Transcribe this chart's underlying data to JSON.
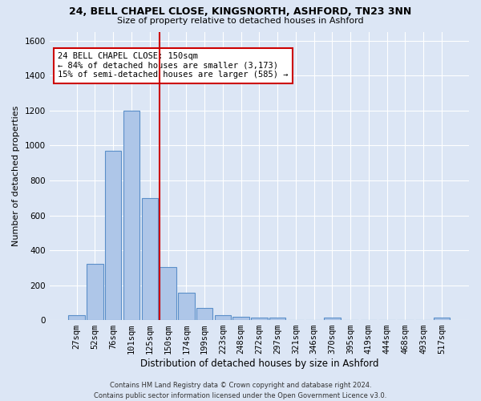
{
  "title1": "24, BELL CHAPEL CLOSE, KINGSNORTH, ASHFORD, TN23 3NN",
  "title2": "Size of property relative to detached houses in Ashford",
  "xlabel": "Distribution of detached houses by size in Ashford",
  "ylabel": "Number of detached properties",
  "footer1": "Contains HM Land Registry data © Crown copyright and database right 2024.",
  "footer2": "Contains public sector information licensed under the Open Government Licence v3.0.",
  "categories": [
    "27sqm",
    "52sqm",
    "76sqm",
    "101sqm",
    "125sqm",
    "150sqm",
    "174sqm",
    "199sqm",
    "223sqm",
    "248sqm",
    "272sqm",
    "297sqm",
    "321sqm",
    "346sqm",
    "370sqm",
    "395sqm",
    "419sqm",
    "444sqm",
    "468sqm",
    "493sqm",
    "517sqm"
  ],
  "values": [
    30,
    320,
    970,
    1200,
    700,
    305,
    155,
    70,
    30,
    20,
    15,
    15,
    0,
    0,
    13,
    0,
    0,
    0,
    0,
    0,
    13
  ],
  "bar_color": "#aec6e8",
  "bar_edge_color": "#5b8fc9",
  "highlight_index": 5,
  "highlight_color": "#cc0000",
  "ylim": [
    0,
    1650
  ],
  "annotation_line1": "24 BELL CHAPEL CLOSE: 150sqm",
  "annotation_line2": "← 84% of detached houses are smaller (3,173)",
  "annotation_line3": "15% of semi-detached houses are larger (585) →",
  "annotation_box_color": "#ffffff",
  "annotation_box_edge_color": "#cc0000",
  "bg_color": "#dce6f5",
  "grid_color": "#ffffff",
  "figsize": [
    6.0,
    5.0
  ],
  "dpi": 100
}
